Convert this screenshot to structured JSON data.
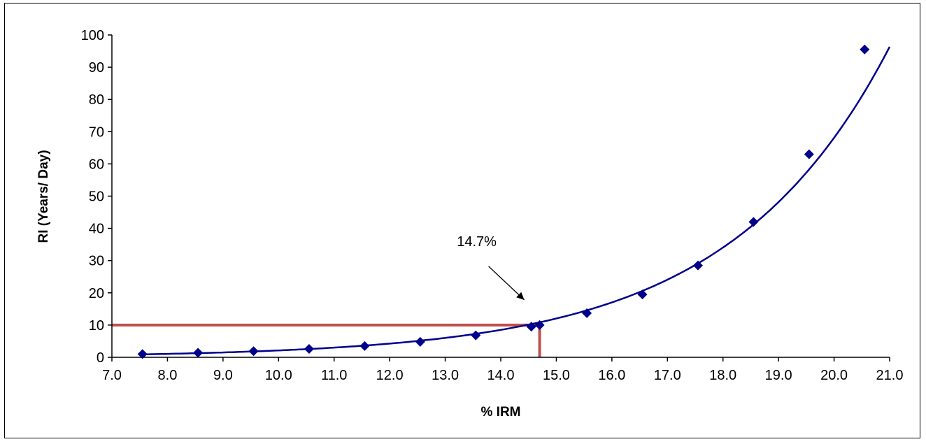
{
  "chart_data": {
    "type": "scatter",
    "title": "",
    "xlabel": "% IRM",
    "ylabel": "RI (Years/ Day)",
    "xlim": [
      7.0,
      21.0
    ],
    "ylim": [
      0,
      100
    ],
    "x_ticks": [
      "7.0",
      "8.0",
      "9.0",
      "10.0",
      "11.0",
      "12.0",
      "13.0",
      "14.0",
      "15.0",
      "16.0",
      "17.0",
      "18.0",
      "19.0",
      "20.0",
      "21.0"
    ],
    "y_ticks": [
      "0",
      "10",
      "20",
      "30",
      "40",
      "50",
      "60",
      "70",
      "80",
      "90",
      "100"
    ],
    "grid": false,
    "legend": "none",
    "series": [
      {
        "color": "#00008b",
        "marker": "diamond",
        "line": "smoothed trend curve",
        "points": [
          {
            "x": 7.55,
            "y": 1.0
          },
          {
            "x": 8.55,
            "y": 1.4
          },
          {
            "x": 9.55,
            "y": 1.9
          },
          {
            "x": 10.55,
            "y": 2.6
          },
          {
            "x": 11.55,
            "y": 3.5
          },
          {
            "x": 12.55,
            "y": 4.8
          },
          {
            "x": 13.55,
            "y": 6.8
          },
          {
            "x": 14.55,
            "y": 9.5
          },
          {
            "x": 14.7,
            "y": 10.0
          },
          {
            "x": 15.55,
            "y": 13.7
          },
          {
            "x": 16.55,
            "y": 19.5
          },
          {
            "x": 17.55,
            "y": 28.5
          },
          {
            "x": 18.55,
            "y": 42.0
          },
          {
            "x": 19.55,
            "y": 63.0
          },
          {
            "x": 20.55,
            "y": 95.5
          }
        ]
      }
    ],
    "reference_lines": [
      {
        "orientation": "horizontal",
        "y": 10,
        "x_from": 7.0,
        "x_to": 14.7,
        "color": "#c0504d"
      },
      {
        "orientation": "vertical",
        "x": 14.7,
        "y_from": 0,
        "y_to": 10,
        "color": "#c0504d"
      }
    ],
    "annotations": [
      {
        "text": "14.7%",
        "target_x": 14.7,
        "target_y": 10.0,
        "arrow": true
      }
    ]
  }
}
